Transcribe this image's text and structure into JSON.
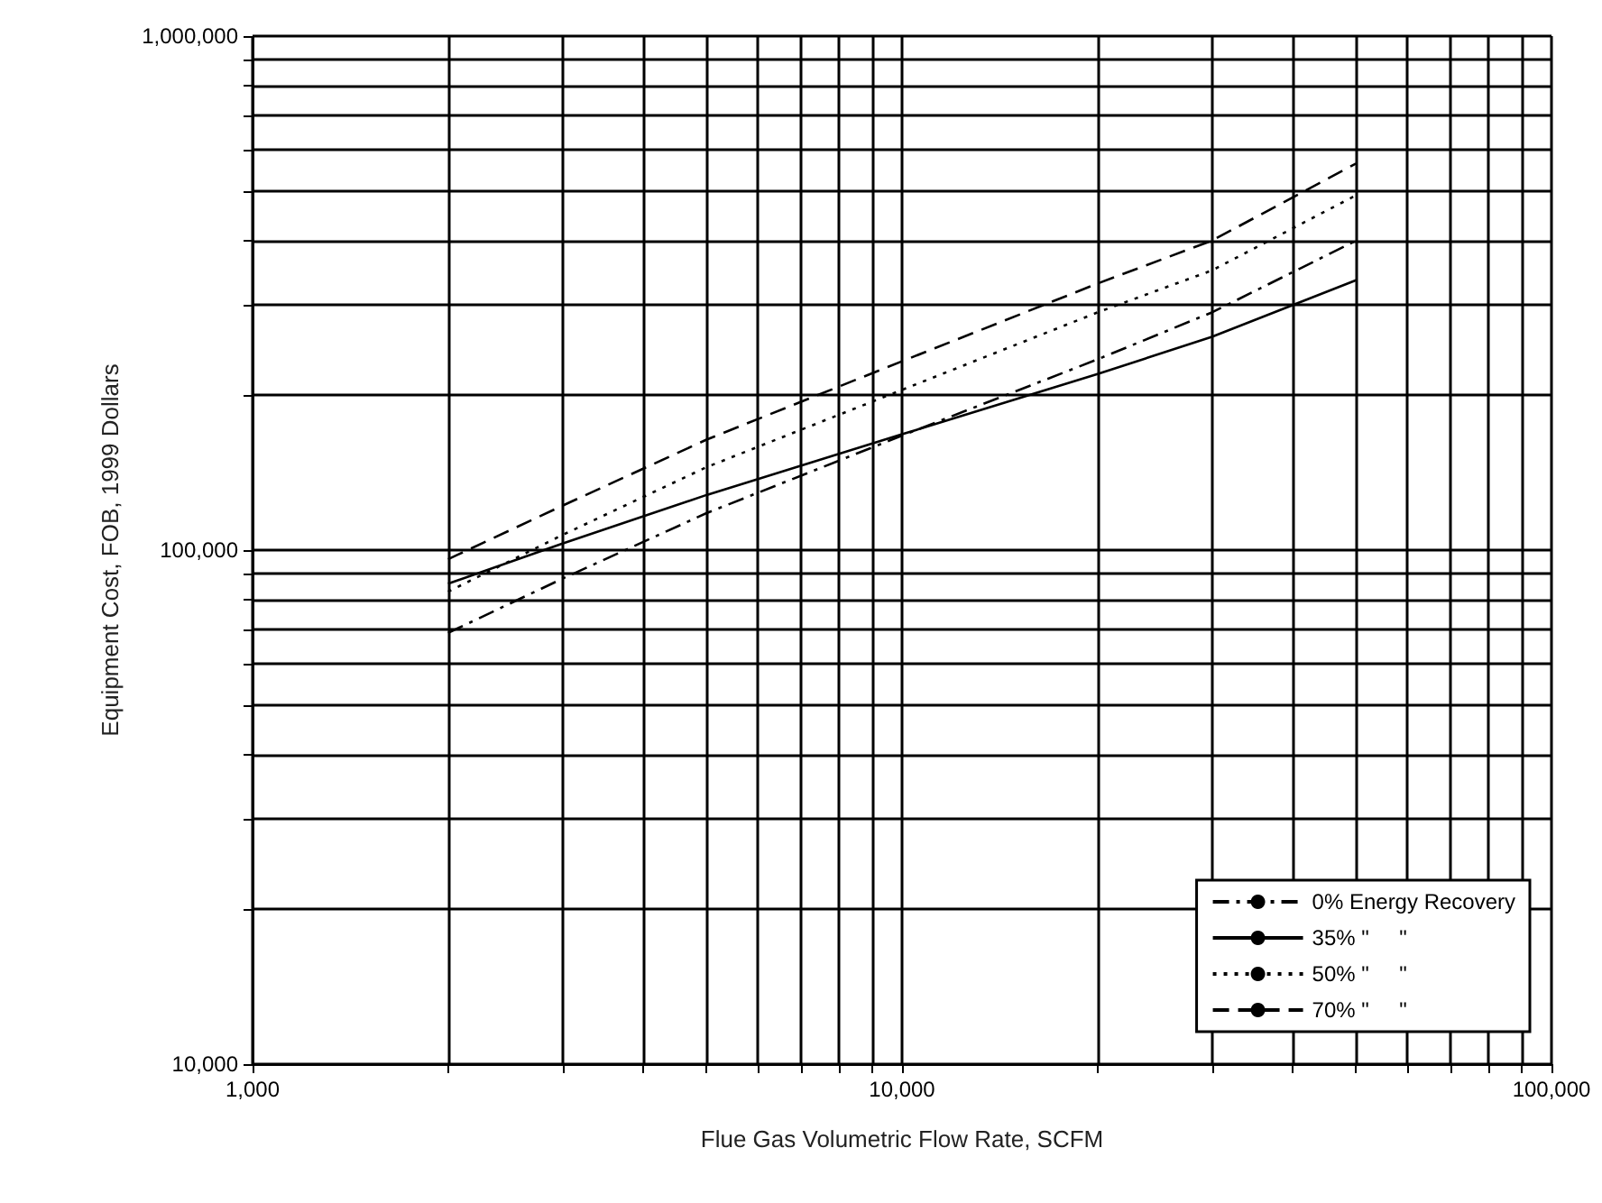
{
  "chart_data": {
    "type": "line",
    "xlabel": "Flue Gas Volumetric Flow Rate, SCFM",
    "ylabel": "Equipment Cost, FOB, 1999 Dollars",
    "log": "xy",
    "grid": true,
    "legend": "bottom right",
    "marker": "none",
    "x": [
      2000,
      3000,
      5000,
      10000,
      20000,
      30000,
      50000
    ],
    "xlim": [
      1000,
      100000
    ],
    "xticks": [
      {
        "value": 1000,
        "label": "1,000"
      },
      {
        "value": 2000,
        "label": null
      },
      {
        "value": 3000,
        "label": null
      },
      {
        "value": 4000,
        "label": null
      },
      {
        "value": 5000,
        "label": null
      },
      {
        "value": 6000,
        "label": null
      },
      {
        "value": 7000,
        "label": null
      },
      {
        "value": 8000,
        "label": null
      },
      {
        "value": 9000,
        "label": null
      },
      {
        "value": 10000,
        "label": "10,000"
      },
      {
        "value": 20000,
        "label": null
      },
      {
        "value": 30000,
        "label": null
      },
      {
        "value": 40000,
        "label": null
      },
      {
        "value": 50000,
        "label": null
      },
      {
        "value": 60000,
        "label": null
      },
      {
        "value": 70000,
        "label": null
      },
      {
        "value": 80000,
        "label": null
      },
      {
        "value": 90000,
        "label": null
      },
      {
        "value": 100000,
        "label": "100,000"
      }
    ],
    "ylim": [
      10000,
      1000000
    ],
    "yticks": [
      {
        "value": 10000,
        "label": "10,000"
      },
      {
        "value": 20000,
        "label": null
      },
      {
        "value": 30000,
        "label": null
      },
      {
        "value": 40000,
        "label": null
      },
      {
        "value": 50000,
        "label": null
      },
      {
        "value": 60000,
        "label": null
      },
      {
        "value": 70000,
        "label": null
      },
      {
        "value": 80000,
        "label": null
      },
      {
        "value": 90000,
        "label": null
      },
      {
        "value": 100000,
        "label": "100,000"
      },
      {
        "value": 200000,
        "label": null
      },
      {
        "value": 300000,
        "label": null
      },
      {
        "value": 400000,
        "label": null
      },
      {
        "value": 500000,
        "label": null
      },
      {
        "value": 600000,
        "label": null
      },
      {
        "value": 700000,
        "label": null
      },
      {
        "value": 800000,
        "label": null
      },
      {
        "value": 900000,
        "label": null
      },
      {
        "value": 1000000,
        "label": "1,000,000"
      }
    ],
    "series": [
      {
        "name": "0% Energy Recovery",
        "color": "#000000",
        "line_style": "dashdot",
        "values": [
          69000,
          88000,
          118000,
          167000,
          235000,
          290000,
          400000
        ]
      },
      {
        "name": "35% \"     \"",
        "color": "#000000",
        "line_style": "solid",
        "values": [
          86000,
          103000,
          128000,
          168000,
          220000,
          260000,
          335000
        ]
      },
      {
        "name": "50% \"     \"",
        "color": "#000000",
        "line_style": "dotted",
        "values": [
          83000,
          107000,
          145000,
          205000,
          290000,
          350000,
          490000
        ]
      },
      {
        "name": "70% \"     \"",
        "color": "#000000",
        "line_style": "dashed",
        "values": [
          96000,
          122000,
          164000,
          233000,
          330000,
          400000,
          565000
        ]
      }
    ]
  }
}
